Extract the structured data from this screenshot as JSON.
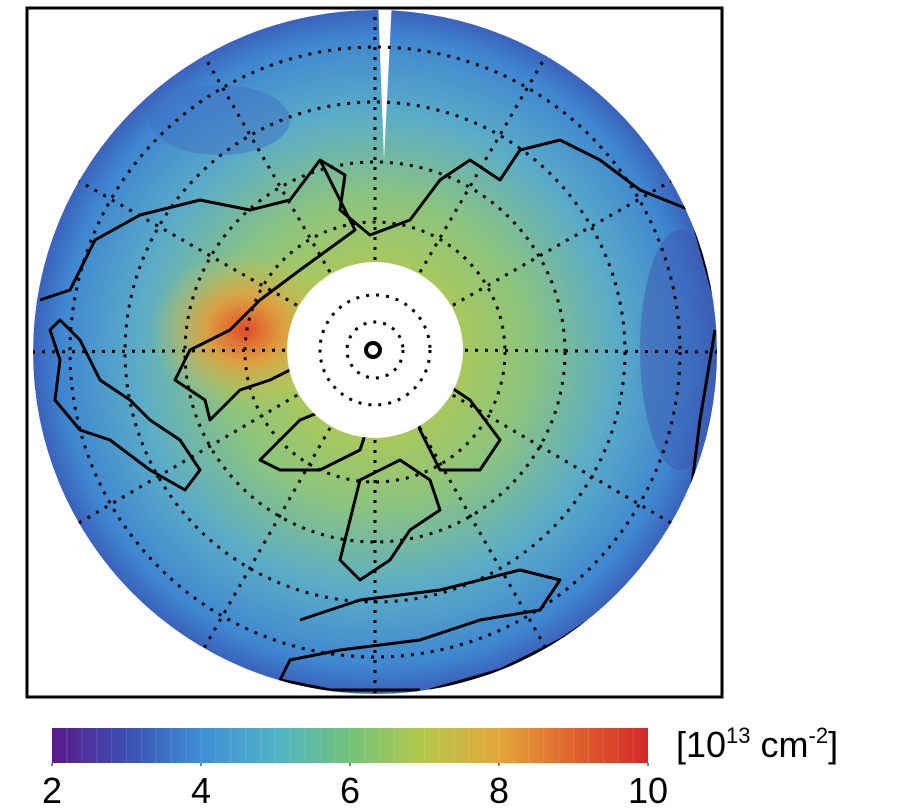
{
  "colorbar": {
    "range": [
      2,
      10
    ],
    "ticks": [
      2,
      4,
      6,
      8,
      10
    ],
    "colormap": [
      "#5b1a8c",
      "#3b4fb2",
      "#3f8ed6",
      "#4fb2c6",
      "#72c27a",
      "#b6c84a",
      "#e3a63a",
      "#e0622c",
      "#d42828"
    ],
    "unit": {
      "open": "[10",
      "exp": "13",
      "unit": " cm",
      "unit_exp": "-2",
      "close": "]"
    }
  }
}
